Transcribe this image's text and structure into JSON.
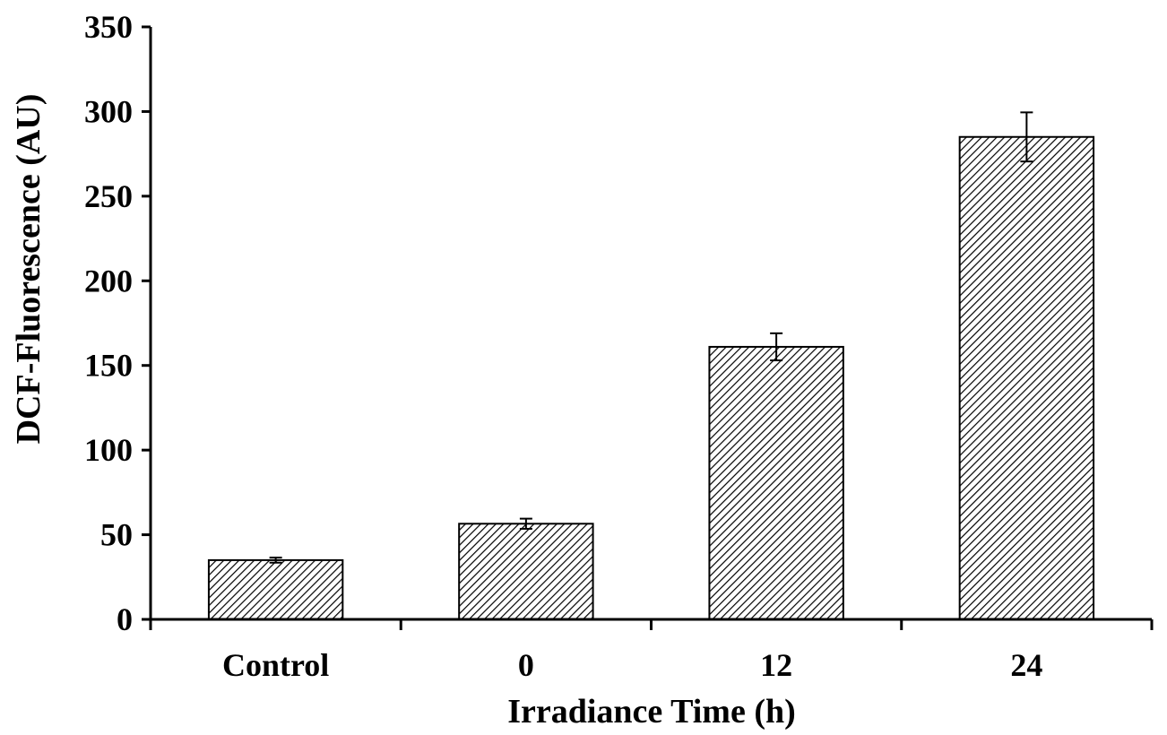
{
  "chart_data": {
    "type": "bar",
    "title": "",
    "xlabel": "Irradiance Time (h)",
    "ylabel": "DCF-Fluorescence (AU)",
    "categories": [
      "Control",
      "0",
      "12",
      "24"
    ],
    "values": [
      35,
      56.5,
      161,
      285
    ],
    "errors": [
      1.5,
      3,
      8,
      14.5
    ],
    "ylim": [
      0,
      350
    ],
    "yticks": [
      0,
      50,
      100,
      150,
      200,
      250,
      300,
      350
    ],
    "ytick_labels": [
      "0",
      "50",
      "100",
      "150",
      "200",
      "250",
      "300",
      "350"
    ],
    "grid": false,
    "legend": "none",
    "bar_fill": "diagonal-hatch",
    "colors": {
      "bar_stroke": "#000000",
      "hatch": "#000000",
      "axis": "#000000",
      "background": "#ffffff"
    }
  }
}
